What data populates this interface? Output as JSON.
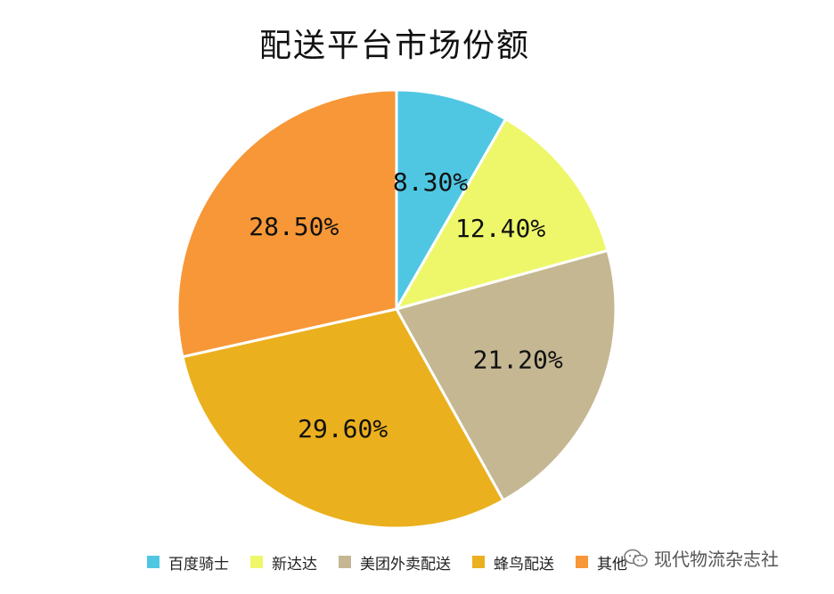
{
  "chart_data": {
    "type": "pie",
    "title": "配送平台市场份额",
    "slices": [
      {
        "name": "百度骑士",
        "value": 8.3,
        "label": "8.30%",
        "color": "#4FC7E2"
      },
      {
        "name": "新达达",
        "value": 12.4,
        "label": "12.40%",
        "color": "#EEF76A"
      },
      {
        "name": "美团外卖配送",
        "value": 21.2,
        "label": "21.20%",
        "color": "#C4B792"
      },
      {
        "name": "蜂鸟配送",
        "value": 29.6,
        "label": "29.60%",
        "color": "#EBB01E"
      },
      {
        "name": "其他",
        "value": 28.5,
        "label": "28.50%",
        "color": "#F79737"
      }
    ],
    "legend_position": "bottom"
  },
  "watermark": {
    "text": "现代物流杂志社",
    "icon": "wechat-icon"
  }
}
